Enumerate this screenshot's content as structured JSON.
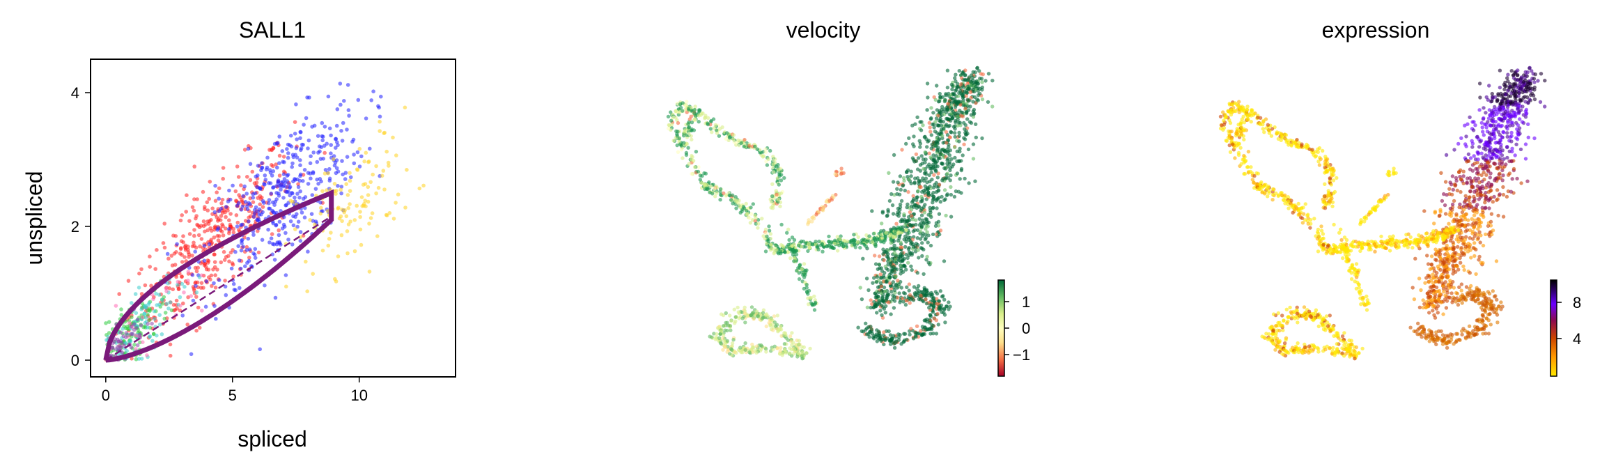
{
  "chart_data": [
    {
      "type": "scatter",
      "title": "SALL1",
      "xlabel": "spliced",
      "ylabel": "unspliced",
      "xlim": [
        -0.6,
        13.8
      ],
      "ylim": [
        -0.25,
        4.5
      ],
      "xticks": [
        "0",
        "5",
        "10"
      ],
      "yticks": [
        "0",
        "2",
        "4"
      ],
      "grid": false,
      "point_colors": [
        "#ff1f1f",
        "#1f1fff",
        "#ffd21f",
        "#2ecc40",
        "#39cccc",
        "#ff69b4",
        "#8e44ad"
      ],
      "fit_curve": {
        "color": "#7a1a7a",
        "x_max": 8.9,
        "y_max": 2.5,
        "description_points": [
          [
            0,
            0
          ],
          [
            2,
            1.15
          ],
          [
            4,
            1.7
          ],
          [
            6,
            2.1
          ],
          [
            8.9,
            2.5
          ],
          [
            8.9,
            2.1
          ],
          [
            7,
            1.35
          ],
          [
            4,
            0.6
          ],
          [
            1,
            0.1
          ],
          [
            0,
            0
          ]
        ]
      }
    },
    {
      "type": "scatter",
      "title": "velocity",
      "colorbar": {
        "ticks": [
          "1",
          "0",
          "−1"
        ],
        "range": [
          -1.6,
          1.6
        ],
        "colors": [
          "#a50026",
          "#f46d43",
          "#fee08b",
          "#ffffbf",
          "#d9ef8b",
          "#66bd63",
          "#006837"
        ]
      }
    },
    {
      "type": "scatter",
      "title": "expression",
      "colorbar": {
        "ticks": [
          "8",
          "4"
        ],
        "range": [
          1.5,
          10
        ],
        "colors": [
          "#ffe800",
          "#ff9900",
          "#cc4400",
          "#8b0a50",
          "#6a00ff",
          "#2a0060",
          "#000000"
        ]
      }
    }
  ]
}
